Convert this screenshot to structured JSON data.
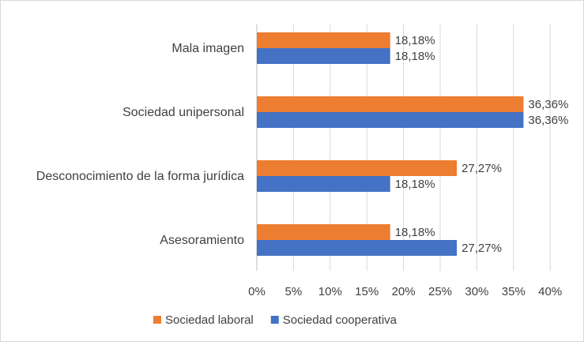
{
  "chart_data": {
    "type": "bar",
    "orientation": "horizontal",
    "categories": [
      "Mala imagen",
      "Sociedad unipersonal",
      "Desconocimiento de la forma jurídica",
      "Asesoramiento"
    ],
    "series": [
      {
        "name": "Sociedad laboral",
        "color": "#ed7d31",
        "values": [
          18.18,
          36.36,
          27.27,
          18.18
        ],
        "labels": [
          "18,18%",
          "36,36%",
          "27,27%",
          "18,18%"
        ]
      },
      {
        "name": "Sociedad cooperativa",
        "color": "#4472c4",
        "values": [
          18.18,
          36.36,
          18.18,
          27.27
        ],
        "labels": [
          "18,18%",
          "36,36%",
          "18,18%",
          "27,27%"
        ]
      }
    ],
    "x_ticks": [
      0,
      5,
      10,
      15,
      20,
      25,
      30,
      35,
      40
    ],
    "x_tick_labels": [
      "0%",
      "5%",
      "10%",
      "15%",
      "20%",
      "25%",
      "30%",
      "35%",
      "40%"
    ],
    "xlim": [
      0,
      40
    ],
    "grid": "vertical",
    "legend_position": "bottom-left",
    "gridline_color": "#d9d9d9"
  }
}
